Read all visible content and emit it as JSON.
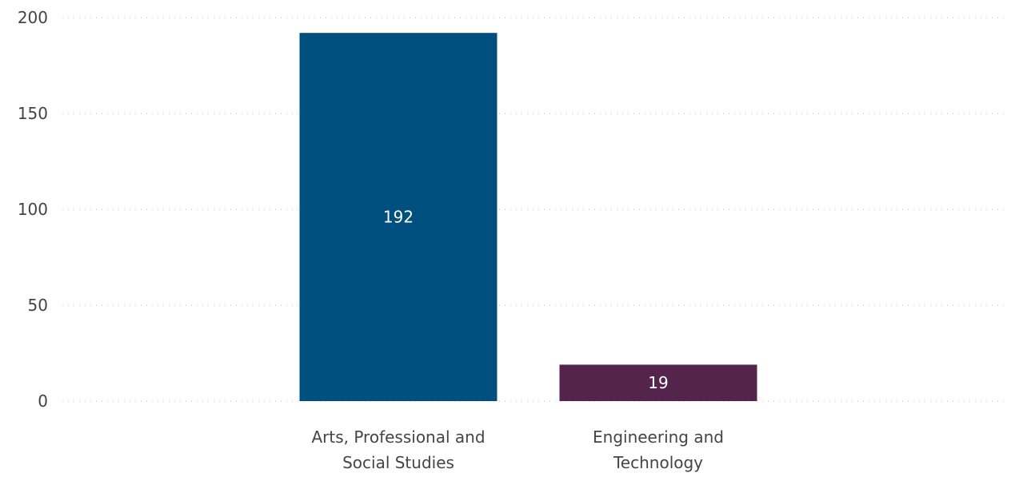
{
  "chart_data": {
    "type": "bar",
    "categories": [
      [
        "Arts, Professional and",
        "Social Studies"
      ],
      [
        "Engineering and",
        "Technology"
      ]
    ],
    "values": [
      192,
      19
    ],
    "data_labels": [
      "192",
      "19"
    ],
    "colors": [
      "#00507f",
      "#55244d"
    ],
    "ylim": [
      0,
      200
    ],
    "yticks": [
      "0",
      "50",
      "100",
      "150",
      "200"
    ],
    "title": "",
    "xlabel": "",
    "ylabel": "",
    "grid": true,
    "legend": "none"
  }
}
